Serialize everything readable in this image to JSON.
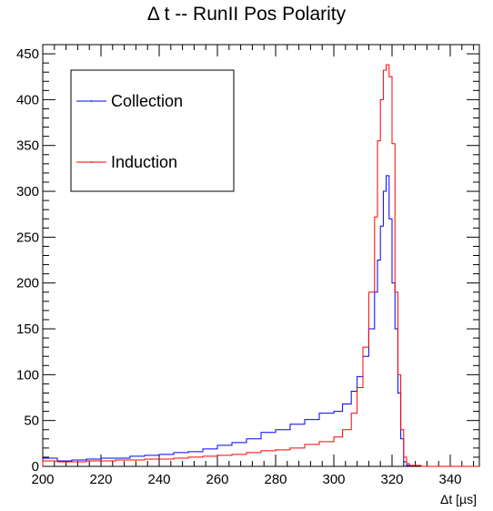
{
  "chart_data": {
    "type": "line",
    "title": "Δ t -- RunII Pos Polarity",
    "xlabel": "Δt [µs]",
    "ylabel": "",
    "xlim": [
      200,
      350
    ],
    "ylim": [
      0,
      460
    ],
    "xticks": [
      200,
      220,
      240,
      260,
      280,
      300,
      320,
      340
    ],
    "yticks": [
      0,
      50,
      100,
      150,
      200,
      250,
      300,
      350,
      400,
      450
    ],
    "grid": false,
    "legend": "top-left",
    "step": "histogram",
    "series": [
      {
        "name": "Collection",
        "color": "#0000ff",
        "x": [
          200,
          205,
          210,
          215,
          220,
          225,
          230,
          235,
          240,
          245,
          250,
          255,
          260,
          265,
          270,
          275,
          280,
          285,
          290,
          295,
          300,
          303,
          306,
          308,
          310,
          312,
          314,
          315,
          316,
          317,
          318,
          319,
          320,
          321,
          322,
          323,
          324,
          325,
          330,
          340,
          350
        ],
        "y": [
          9,
          6,
          7,
          8,
          9,
          9,
          11,
          12,
          13,
          15,
          16,
          19,
          23,
          26,
          30,
          37,
          40,
          46,
          51,
          58,
          60,
          68,
          82,
          98,
          120,
          150,
          190,
          225,
          262,
          300,
          317,
          270,
          200,
          150,
          80,
          30,
          5,
          1,
          0,
          0,
          0
        ]
      },
      {
        "name": "Induction",
        "color": "#ff0000",
        "x": [
          200,
          205,
          210,
          215,
          220,
          225,
          230,
          235,
          240,
          245,
          250,
          255,
          260,
          265,
          270,
          275,
          280,
          285,
          290,
          295,
          300,
          303,
          306,
          308,
          310,
          312,
          314,
          315,
          316,
          317,
          318,
          319,
          320,
          321,
          322,
          323,
          324,
          325,
          326,
          330,
          340,
          350
        ],
        "y": [
          6,
          5,
          5,
          6,
          6,
          7,
          7,
          8,
          8,
          9,
          10,
          11,
          12,
          13,
          15,
          17,
          18,
          20,
          24,
          27,
          32,
          40,
          58,
          86,
          130,
          190,
          272,
          355,
          400,
          432,
          438,
          425,
          352,
          190,
          100,
          40,
          10,
          3,
          1,
          0,
          0,
          0
        ]
      }
    ]
  }
}
